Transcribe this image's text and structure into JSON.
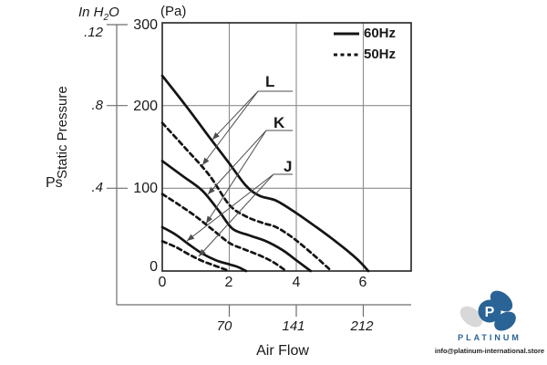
{
  "units": {
    "pa_label": "(Pa)",
    "inh2o_pre": "In H",
    "inh2o_sub": "2",
    "inh2o_post": "O"
  },
  "y_axis": {
    "title": "Static Pressure",
    "symbol": "Ps",
    "pa_ticks": [
      "300",
      "200",
      "100",
      "0"
    ],
    "inh2o_ticks": [
      ".12",
      ".8",
      ".4"
    ]
  },
  "x_axis": {
    "primary_ticks": [
      "0",
      "2",
      "4",
      "6"
    ],
    "cfm_ticks": [
      "70",
      "141",
      "212"
    ],
    "title": "Air Flow"
  },
  "legend": {
    "items": [
      {
        "label": "60Hz",
        "line": "solid"
      },
      {
        "label": "50Hz",
        "line": "dashed"
      }
    ]
  },
  "curve_labels": {
    "L": "L",
    "K": "K",
    "J": "J"
  },
  "watermark": {
    "logo_letter": "P",
    "brand": "PLATINUM",
    "email": "info@platinum-international.store",
    "logo_blue": "#2a6395",
    "logo_gray": "#d8d8d8"
  },
  "chart_data": {
    "type": "line",
    "title": "Fan performance curves: Static Pressure vs Air Flow",
    "xlabel": "Air Flow",
    "ylabel": "Static Pressure Ps",
    "ylim_pa": [
      0,
      300
    ],
    "y_ticks_pa": [
      0,
      100,
      200,
      300
    ],
    "y_secondary_ticks_inh2o_as_printed": [
      ".12",
      ".8",
      ".4"
    ],
    "y_secondary_maps_to_pa": [
      300,
      200,
      100
    ],
    "x_ticks_primary": [
      0,
      2,
      4,
      6
    ],
    "x_secondary_ticks_cfm": [
      70,
      141,
      212
    ],
    "x_secondary_aligned_with_primary": [
      2,
      4,
      6
    ],
    "grid": true,
    "legend_position": "top-right inside plot",
    "legend": [
      "60Hz",
      "50Hz"
    ],
    "series": [
      {
        "name": "L 60Hz",
        "model": "L",
        "frequency": "60Hz",
        "style": "solid",
        "points": [
          [
            0,
            236
          ],
          [
            0.7,
            200
          ],
          [
            1.4,
            162
          ],
          [
            2.0,
            130
          ],
          [
            2.5,
            103
          ],
          [
            2.9,
            91
          ],
          [
            3.4,
            85
          ],
          [
            4.0,
            70
          ],
          [
            4.6,
            53
          ],
          [
            5.2,
            35
          ],
          [
            5.8,
            15
          ],
          [
            6.15,
            0
          ]
        ]
      },
      {
        "name": "L 50Hz",
        "model": "L",
        "frequency": "50Hz",
        "style": "dashed",
        "points": [
          [
            0,
            179
          ],
          [
            0.7,
            148
          ],
          [
            1.4,
            116
          ],
          [
            2.0,
            80
          ],
          [
            2.5,
            66
          ],
          [
            3.0,
            58
          ],
          [
            3.4,
            53
          ],
          [
            3.9,
            40
          ],
          [
            4.5,
            20
          ],
          [
            5.05,
            0
          ]
        ]
      },
      {
        "name": "K 60Hz",
        "model": "K",
        "frequency": "60Hz",
        "style": "solid",
        "points": [
          [
            0,
            133
          ],
          [
            0.6,
            115
          ],
          [
            1.2,
            97
          ],
          [
            1.7,
            72
          ],
          [
            2.1,
            51
          ],
          [
            2.6,
            43
          ],
          [
            3.1,
            36
          ],
          [
            3.6,
            25
          ],
          [
            4.0,
            13
          ],
          [
            4.43,
            0
          ]
        ]
      },
      {
        "name": "K 50Hz",
        "model": "K",
        "frequency": "50Hz",
        "style": "dashed",
        "points": [
          [
            0,
            93
          ],
          [
            0.5,
            80
          ],
          [
            1.0,
            66
          ],
          [
            1.5,
            50
          ],
          [
            2.0,
            34
          ],
          [
            2.4,
            27
          ],
          [
            2.9,
            19
          ],
          [
            3.3,
            11
          ],
          [
            3.7,
            0
          ]
        ]
      },
      {
        "name": "J 60Hz",
        "model": "J",
        "frequency": "60Hz",
        "style": "solid",
        "points": [
          [
            0,
            53
          ],
          [
            0.4,
            44
          ],
          [
            0.8,
            32
          ],
          [
            1.2,
            21
          ],
          [
            1.6,
            13
          ],
          [
            2.0,
            8
          ],
          [
            2.25,
            5
          ],
          [
            2.5,
            0
          ]
        ]
      },
      {
        "name": "J 50Hz",
        "model": "J",
        "frequency": "50Hz",
        "style": "dashed",
        "points": [
          [
            0,
            36
          ],
          [
            0.4,
            29
          ],
          [
            0.8,
            20
          ],
          [
            1.2,
            12
          ],
          [
            1.6,
            6
          ],
          [
            2.0,
            0
          ]
        ]
      }
    ]
  }
}
